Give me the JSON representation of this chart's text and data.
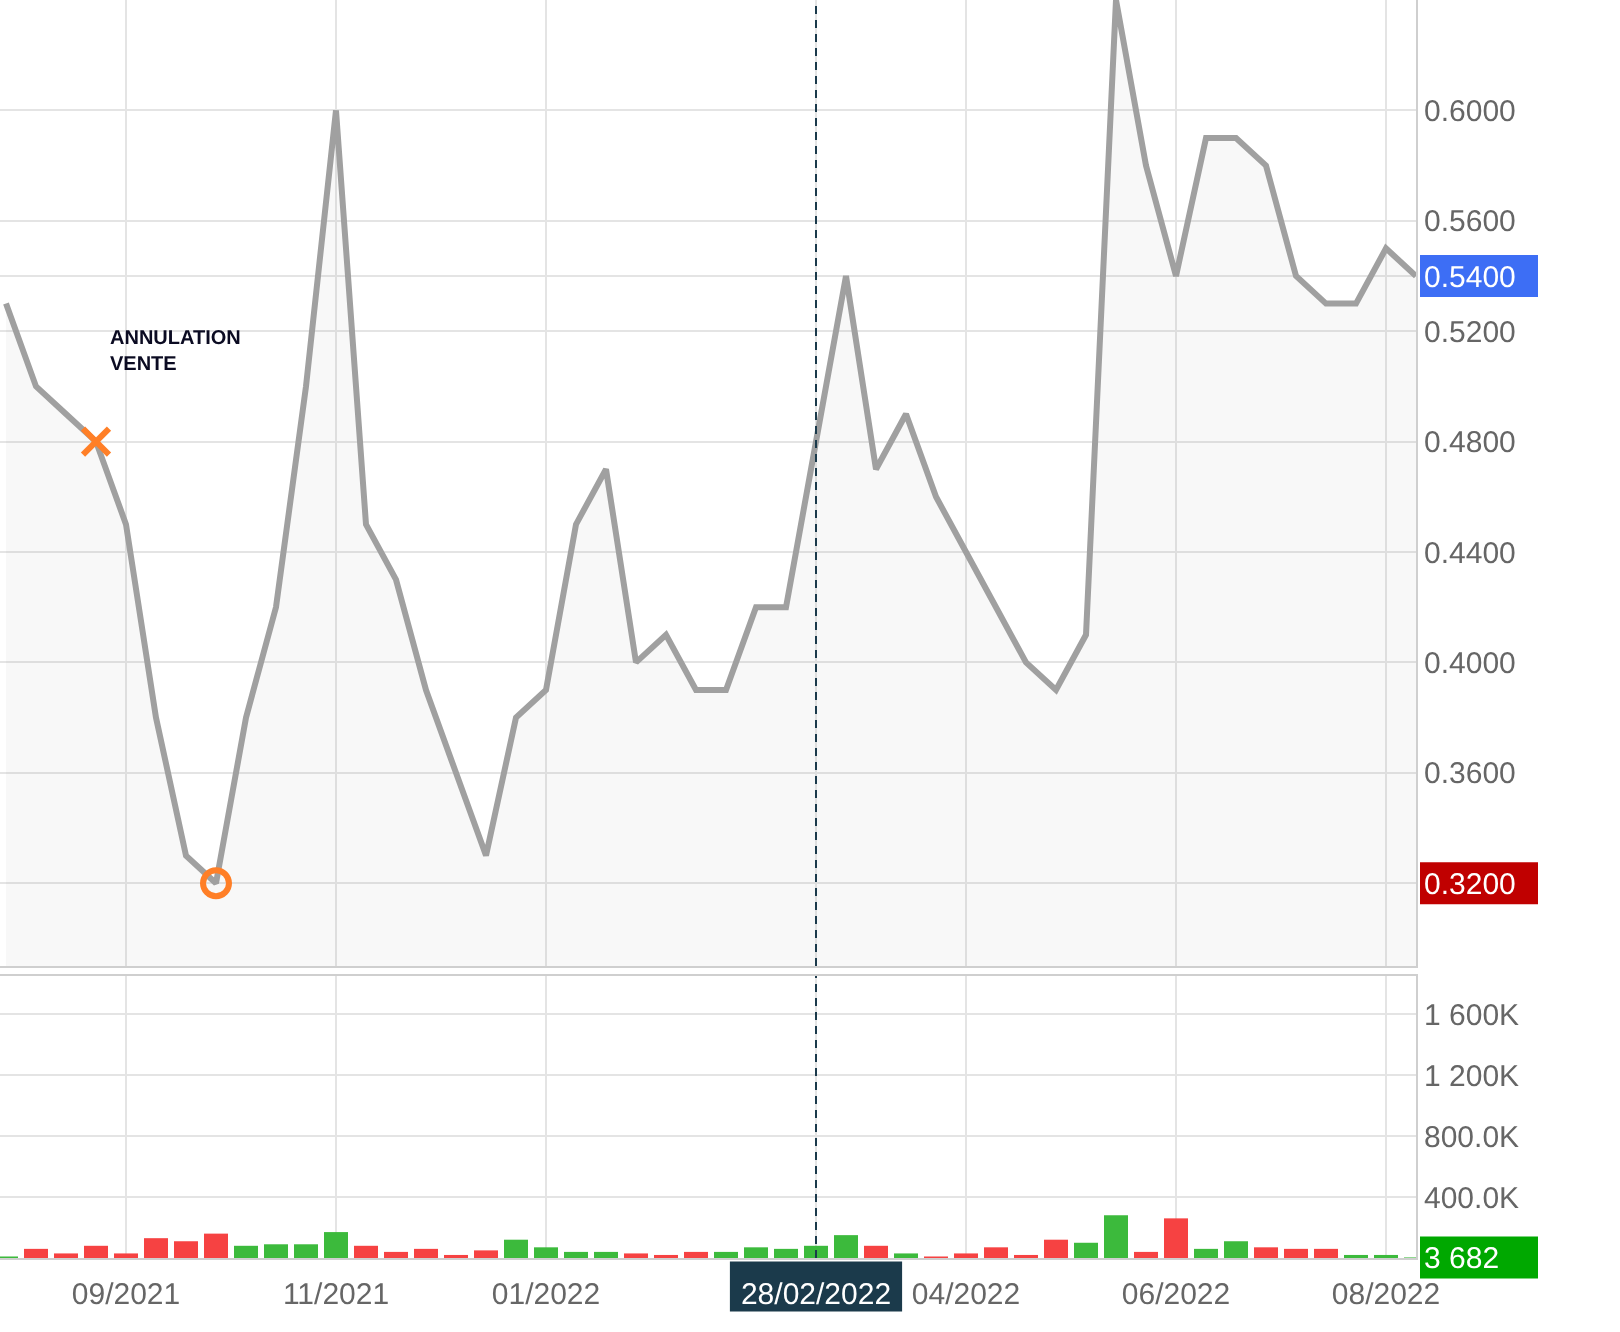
{
  "chart_data": [
    {
      "type": "area",
      "categories": [
        null,
        null,
        null,
        null,
        "09/2021",
        null,
        null,
        null,
        null,
        null,
        null,
        "11/2021",
        null,
        null,
        null,
        null,
        null,
        null,
        "01/2022",
        null,
        null,
        null,
        null,
        null,
        null,
        null,
        null,
        "28/02/2022",
        null,
        null,
        null,
        null,
        "04/2022",
        null,
        null,
        null,
        null,
        null,
        null,
        "06/2022",
        null,
        null,
        null,
        null,
        null,
        null,
        "08/2022",
        null
      ],
      "tick_labels": "y",
      "series": [
        {
          "type": "area",
          "color": "#a0a0a0",
          "values": [
            0.53,
            0.5,
            0.49,
            0.48,
            0.45,
            0.38,
            0.33,
            0.32,
            0.38,
            0.42,
            0.5,
            0.6,
            0.45,
            0.43,
            0.39,
            0.36,
            0.33,
            0.38,
            0.39,
            0.45,
            0.47,
            0.4,
            0.41,
            0.39,
            0.39,
            0.42,
            0.42,
            0.48,
            0.54,
            0.47,
            0.49,
            0.46,
            0.44,
            0.42,
            0.4,
            0.39,
            0.41,
            0.64,
            0.58,
            0.54,
            0.59,
            0.59,
            0.58,
            0.54,
            0.53,
            0.53,
            0.55,
            0.54
          ]
        },
        {
          "type": "scatter",
          "color": "#ff7f27",
          "marker": "cross",
          "values": [
            null,
            null,
            null,
            0.48,
            null,
            null,
            null,
            null,
            null,
            null,
            null,
            null,
            null,
            null,
            null,
            null,
            null,
            null,
            null,
            null,
            null,
            null,
            null,
            null,
            null,
            null,
            null,
            null,
            null,
            null,
            null,
            null,
            null,
            null,
            null,
            null,
            null,
            null,
            null,
            null,
            null,
            null,
            null,
            null,
            null,
            null,
            null,
            null
          ]
        },
        {
          "type": "scatter",
          "color": "#ff7f27",
          "marker": "circle",
          "values": [
            null,
            null,
            null,
            null,
            null,
            null,
            null,
            0.32,
            null,
            null,
            null,
            null,
            null,
            null,
            null,
            null,
            null,
            null,
            null,
            null,
            null,
            null,
            null,
            null,
            null,
            null,
            null,
            null,
            null,
            null,
            null,
            null,
            null,
            null,
            null,
            null,
            null,
            null,
            null,
            null,
            null,
            null,
            null,
            null,
            null,
            null,
            null,
            null
          ]
        }
      ],
      "ylim": [
        0.29,
        0.64
      ],
      "yticks": [
        {
          "value": 0.32,
          "label": "0.3200"
        },
        {
          "value": 0.36,
          "label": "0.3600"
        },
        {
          "value": 0.4,
          "label": "0.4000"
        },
        {
          "value": 0.44,
          "label": "0.4400"
        },
        {
          "value": 0.48,
          "label": "0.4800"
        },
        {
          "value": 0.52,
          "label": "0.5200"
        },
        {
          "value": 0.54,
          "label": "0.5400"
        },
        {
          "value": 0.56,
          "label": "0.5600"
        },
        {
          "value": 0.6,
          "label": "0.6000"
        }
      ],
      "grid": true,
      "ref_lines": [
        {
          "axis": "x",
          "value": "28/02/2022",
          "color": "#1b3a4b",
          "line_style": "dashed"
        }
      ],
      "annotations": [
        "ANNULATION\nVENTE"
      ]
    },
    {
      "type": "bar",
      "categories": [
        null,
        null,
        null,
        null,
        "09/2021",
        null,
        null,
        null,
        null,
        null,
        null,
        "11/2021",
        null,
        null,
        null,
        null,
        null,
        null,
        "01/2022",
        null,
        null,
        null,
        null,
        null,
        null,
        null,
        null,
        "28/02/2022",
        null,
        null,
        null,
        null,
        "04/2022",
        null,
        null,
        null,
        null,
        null,
        null,
        "06/2022",
        null,
        null,
        null,
        null,
        null,
        null,
        "08/2022",
        null
      ],
      "values": [
        10000,
        60000,
        30000,
        80000,
        30000,
        130000,
        110000,
        160000,
        80000,
        90000,
        90000,
        170000,
        80000,
        40000,
        60000,
        20000,
        50000,
        120000,
        70000,
        40000,
        40000,
        30000,
        20000,
        40000,
        40000,
        70000,
        60000,
        80000,
        150000,
        80000,
        30000,
        10000,
        30000,
        70000,
        20000,
        120000,
        100000,
        280000,
        40000,
        260000,
        60000,
        110000,
        70000,
        60000,
        60000,
        20000,
        20000,
        3682
      ],
      "colors": [
        "#3cba3c",
        "#f64242",
        "#f64242",
        "#f64242",
        "#f64242",
        "#f64242",
        "#f64242",
        "#f64242",
        "#3cba3c",
        "#3cba3c",
        "#3cba3c",
        "#3cba3c",
        "#f64242",
        "#f64242",
        "#f64242",
        "#f64242",
        "#f64242",
        "#3cba3c",
        "#3cba3c",
        "#3cba3c",
        "#3cba3c",
        "#f64242",
        "#f64242",
        "#f64242",
        "#3cba3c",
        "#3cba3c",
        "#3cba3c",
        "#3cba3c",
        "#3cba3c",
        "#f64242",
        "#3cba3c",
        "#f64242",
        "#f64242",
        "#f64242",
        "#f64242",
        "#f64242",
        "#3cba3c",
        "#3cba3c",
        "#f64242",
        "#f64242",
        "#3cba3c",
        "#3cba3c",
        "#f64242",
        "#f64242",
        "#f64242",
        "#3cba3c",
        "#3cba3c",
        "#3cba3c"
      ],
      "ylim": [
        0,
        1850000
      ],
      "yticks": [
        {
          "value": 3682,
          "label": "3 682"
        },
        {
          "value": 400000,
          "label": "400.0K"
        },
        {
          "value": 800000,
          "label": "800.0K"
        },
        {
          "value": 1200000,
          "label": "1 200K"
        },
        {
          "value": 1600000,
          "label": "1 600K"
        }
      ],
      "grid": true,
      "ref_lines": [
        {
          "axis": "x",
          "value": "28/02/2022",
          "color": "#1b3a4b",
          "line_style": "dashed"
        }
      ]
    }
  ]
}
